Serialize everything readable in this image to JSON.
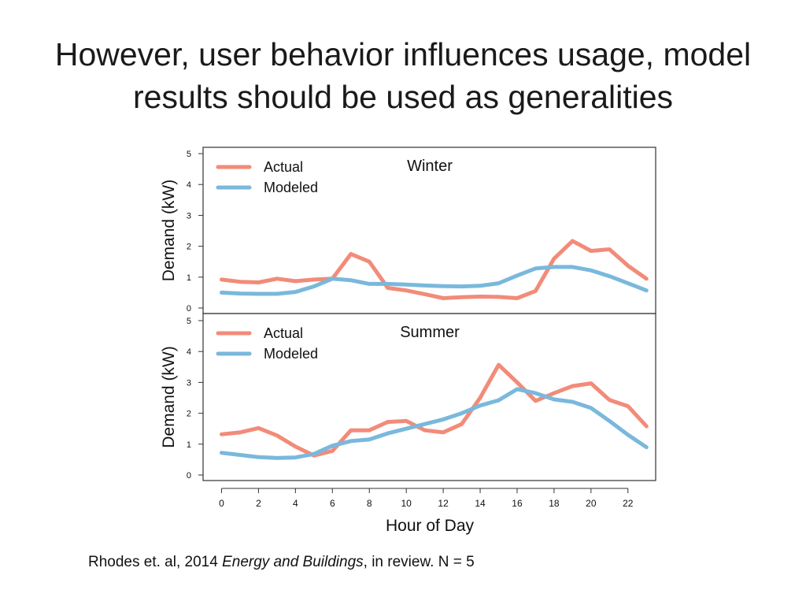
{
  "slide": {
    "title_line1": "However, user behavior influences usage, model",
    "title_line2": "results should be used as generalities"
  },
  "citation": {
    "prefix": "Rhodes et. al, 2014 ",
    "journal": "Energy and Buildings",
    "suffix": ", in review.  N = 5"
  },
  "colors": {
    "actual": "#f28b79",
    "modeled": "#7ab8dc"
  },
  "chart_data": [
    {
      "type": "line",
      "title": "Winter",
      "xlabel": "",
      "ylabel": "Demand (kW)",
      "xlim": [
        -1,
        23.5
      ],
      "ylim": [
        0,
        5
      ],
      "yticks": [
        0,
        1,
        2,
        3,
        4,
        5
      ],
      "legend": "top-left",
      "grid": false,
      "x": [
        0,
        1,
        2,
        3,
        4,
        5,
        6,
        7,
        8,
        9,
        10,
        11,
        12,
        13,
        14,
        15,
        16,
        17,
        18,
        19,
        20,
        21,
        22,
        23
      ],
      "series": [
        {
          "name": "Actual",
          "color": "#f28b79",
          "values": [
            0.92,
            0.85,
            0.83,
            0.95,
            0.87,
            0.92,
            0.95,
            1.75,
            1.5,
            0.65,
            0.57,
            0.45,
            0.32,
            0.35,
            0.37,
            0.36,
            0.32,
            0.55,
            1.6,
            2.17,
            1.85,
            1.9,
            1.37,
            0.95
          ]
        },
        {
          "name": "Modeled",
          "color": "#7ab8dc",
          "values": [
            0.5,
            0.47,
            0.46,
            0.46,
            0.52,
            0.7,
            0.95,
            0.9,
            0.78,
            0.78,
            0.76,
            0.73,
            0.71,
            0.7,
            0.72,
            0.8,
            1.05,
            1.28,
            1.33,
            1.33,
            1.22,
            1.03,
            0.8,
            0.57
          ]
        }
      ]
    },
    {
      "type": "line",
      "title": "Summer",
      "xlabel": "Hour of Day",
      "ylabel": "Demand (kW)",
      "xlim": [
        -1,
        23.5
      ],
      "ylim": [
        0,
        5
      ],
      "yticks": [
        0,
        1,
        2,
        3,
        4,
        5
      ],
      "xticks": [
        0,
        2,
        4,
        6,
        8,
        10,
        12,
        14,
        16,
        18,
        20,
        22
      ],
      "legend": "top-left",
      "grid": false,
      "x": [
        0,
        1,
        2,
        3,
        4,
        5,
        6,
        7,
        8,
        9,
        10,
        11,
        12,
        13,
        14,
        15,
        16,
        17,
        18,
        19,
        20,
        21,
        22,
        23
      ],
      "series": [
        {
          "name": "Actual",
          "color": "#f28b79",
          "values": [
            1.32,
            1.38,
            1.52,
            1.28,
            0.92,
            0.63,
            0.78,
            1.45,
            1.45,
            1.72,
            1.75,
            1.45,
            1.38,
            1.65,
            2.5,
            3.57,
            3.0,
            2.4,
            2.65,
            2.88,
            2.97,
            2.43,
            2.23,
            1.58
          ]
        },
        {
          "name": "Modeled",
          "color": "#7ab8dc",
          "values": [
            0.72,
            0.65,
            0.58,
            0.55,
            0.57,
            0.68,
            0.95,
            1.1,
            1.15,
            1.35,
            1.5,
            1.65,
            1.8,
            2.0,
            2.25,
            2.42,
            2.78,
            2.65,
            2.45,
            2.37,
            2.17,
            1.75,
            1.3,
            0.9
          ]
        }
      ]
    }
  ]
}
